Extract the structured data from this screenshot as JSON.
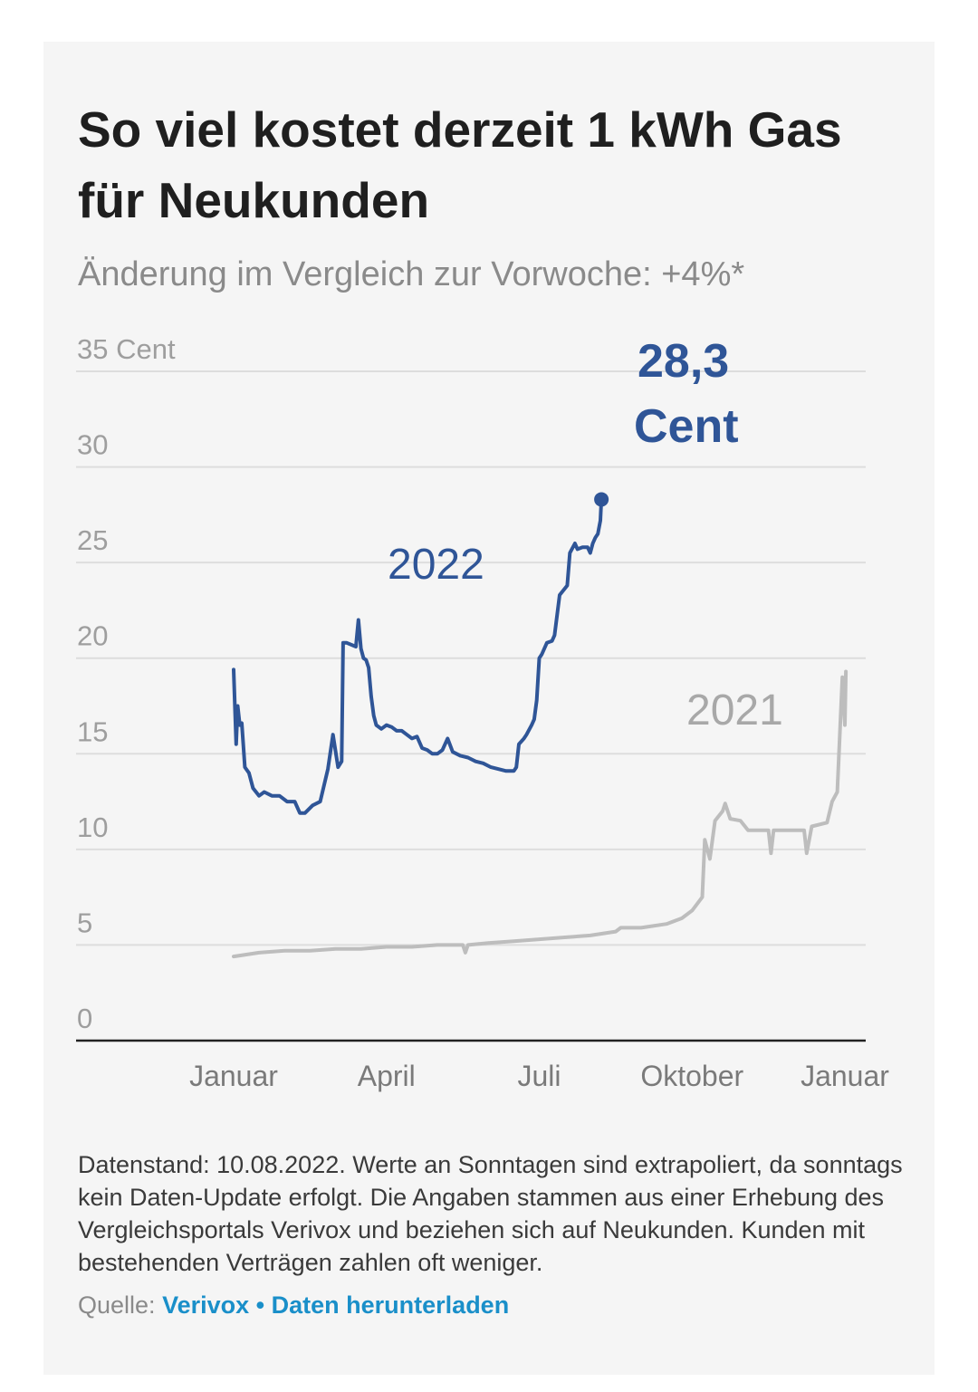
{
  "header": {
    "title": "So viel kostet derzeit 1 kWh Gas für Neukunden",
    "subtitle": "Änderung im Vergleich zur Vorwoche: +4%*"
  },
  "chart_data": {
    "type": "line",
    "title": "So viel kostet derzeit 1 kWh Gas für Neukunden",
    "ylabel": "Cent",
    "ylim": [
      0,
      35
    ],
    "y_ticks": [
      {
        "value": 35,
        "label": "35 Cent"
      },
      {
        "value": 30,
        "label": "30"
      },
      {
        "value": 25,
        "label": "25"
      },
      {
        "value": 20,
        "label": "20"
      },
      {
        "value": 15,
        "label": "15"
      },
      {
        "value": 10,
        "label": "10"
      },
      {
        "value": 5,
        "label": "5"
      },
      {
        "value": 0,
        "label": "0"
      }
    ],
    "x_ticks": [
      {
        "value": 0,
        "label": "Januar"
      },
      {
        "value": 3,
        "label": "April"
      },
      {
        "value": 6,
        "label": "Juli"
      },
      {
        "value": 9,
        "label": "Oktober"
      },
      {
        "value": 12,
        "label": "Januar"
      }
    ],
    "xlim": [
      0,
      12
    ],
    "grid": true,
    "series": [
      {
        "name": "2021",
        "color": "#bdbdbd",
        "x": [
          0.0,
          0.5,
          1.0,
          1.5,
          2.0,
          2.5,
          3.0,
          3.5,
          4.0,
          4.5,
          4.55,
          4.6,
          5.0,
          5.5,
          6.0,
          6.5,
          7.0,
          7.5,
          7.6,
          8.0,
          8.5,
          8.8,
          9.0,
          9.2,
          9.25,
          9.35,
          9.45,
          9.6,
          9.65,
          9.75,
          9.95,
          10.1,
          10.3,
          10.5,
          10.55,
          10.6,
          10.8,
          11.0,
          11.2,
          11.25,
          11.35,
          11.65,
          11.75,
          11.85,
          11.95,
          12.0,
          12.02
        ],
        "values": [
          4.4,
          4.6,
          4.7,
          4.7,
          4.8,
          4.8,
          4.9,
          4.9,
          5.0,
          5.0,
          4.6,
          5.0,
          5.1,
          5.2,
          5.3,
          5.4,
          5.5,
          5.7,
          5.9,
          5.9,
          6.1,
          6.4,
          6.8,
          7.5,
          10.5,
          9.5,
          11.5,
          12.0,
          12.4,
          11.6,
          11.5,
          11.0,
          11.0,
          11.0,
          9.8,
          11.0,
          11.0,
          11.0,
          11.0,
          9.8,
          11.2,
          11.4,
          12.5,
          13.0,
          19.0,
          16.5,
          19.3
        ]
      },
      {
        "name": "2022",
        "color": "#2f5597",
        "x": [
          0.0,
          0.05,
          0.08,
          0.12,
          0.16,
          0.22,
          0.3,
          0.38,
          0.5,
          0.6,
          0.75,
          0.9,
          1.05,
          1.2,
          1.3,
          1.4,
          1.55,
          1.7,
          1.85,
          1.95,
          2.05,
          2.12,
          2.15,
          2.22,
          2.4,
          2.45,
          2.5,
          2.55,
          2.6,
          2.65,
          2.7,
          2.75,
          2.8,
          2.9,
          3.0,
          3.1,
          3.2,
          3.3,
          3.4,
          3.5,
          3.6,
          3.7,
          3.8,
          3.9,
          4.0,
          4.1,
          4.2,
          4.3,
          4.45,
          4.6,
          4.75,
          4.9,
          5.05,
          5.2,
          5.35,
          5.5,
          5.55,
          5.6,
          5.7,
          5.75,
          5.85,
          5.9,
          5.95,
          6.0,
          6.05,
          6.15,
          6.25,
          6.3,
          6.4,
          6.55,
          6.6,
          6.7,
          6.75,
          6.85,
          6.95,
          7.0,
          7.05,
          7.1,
          7.15,
          7.2
        ],
        "values": [
          19.4,
          15.5,
          17.5,
          16.5,
          16.6,
          14.3,
          14.0,
          13.2,
          12.8,
          13.0,
          12.8,
          12.8,
          12.5,
          12.5,
          11.9,
          11.9,
          12.3,
          12.5,
          14.2,
          16.0,
          14.3,
          14.6,
          20.8,
          20.8,
          20.6,
          22.0,
          20.5,
          20.0,
          19.9,
          19.5,
          18.0,
          17.0,
          16.5,
          16.3,
          16.5,
          16.4,
          16.2,
          16.2,
          16.0,
          15.8,
          15.9,
          15.3,
          15.2,
          15.0,
          15.0,
          15.2,
          15.8,
          15.1,
          14.9,
          14.8,
          14.6,
          14.5,
          14.3,
          14.2,
          14.1,
          14.1,
          14.3,
          15.5,
          15.8,
          16.0,
          16.5,
          16.8,
          17.8,
          20.0,
          20.2,
          20.8,
          20.9,
          21.2,
          23.3,
          23.8,
          25.5,
          26.0,
          25.7,
          25.8,
          25.8,
          25.5,
          26.0,
          26.3,
          26.5,
          27.2
        ]
      }
    ],
    "annotations": {
      "series_2022_label": "2022",
      "series_2021_label": "2021",
      "current_value": "28,3",
      "current_unit": "Cent"
    },
    "current_point": {
      "x": 7.22,
      "value": 28.3
    }
  },
  "footer": {
    "note": "Datenstand: 10.08.2022. Werte an Sonntagen sind extrapoliert, da sonntags kein Daten-Update erfolgt. Die Angaben stammen aus einer Erhebung des Vergleichsportals Verivox und beziehen sich auf Neukunden. Kunden mit bestehenden Verträgen zahlen oft weniger.",
    "source_label": "Quelle:",
    "source_link": "Verivox",
    "separator": "•",
    "download_link": "Daten herunterladen"
  }
}
